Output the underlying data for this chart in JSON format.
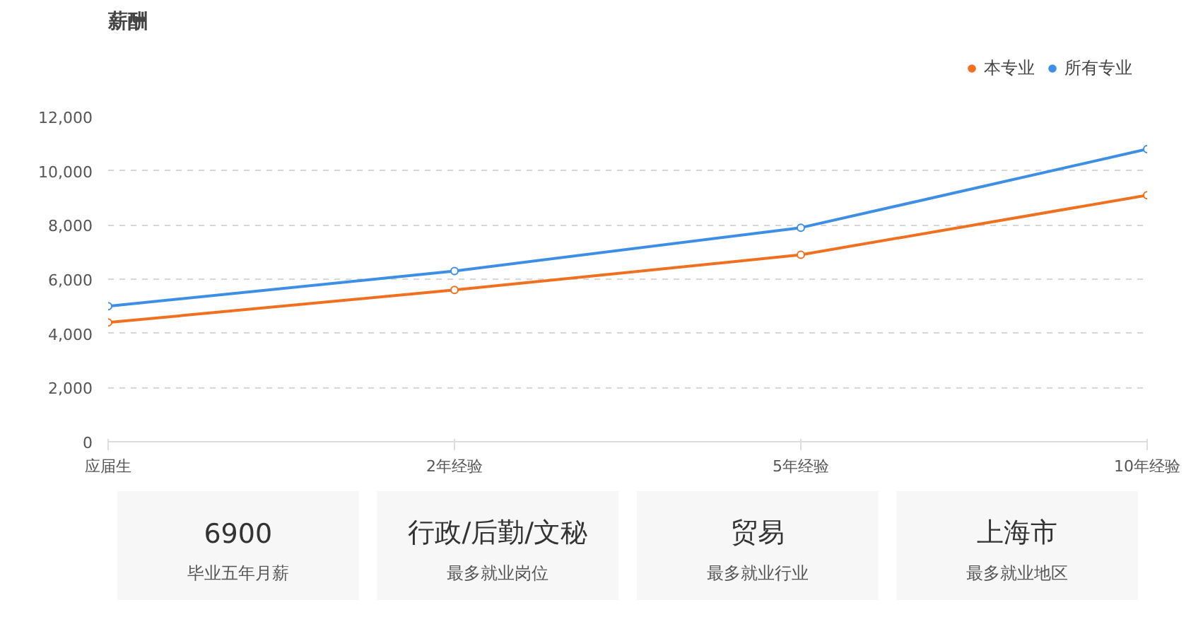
{
  "chart_data": [
    {
      "type": "line",
      "title": "薪酬",
      "categories": [
        "应届生",
        "2年经验",
        "5年经验",
        "10年经验"
      ],
      "series": [
        {
          "name": "本专业",
          "color": "#f07020",
          "values": [
            4400,
            5600,
            6900,
            9100
          ]
        },
        {
          "name": "所有专业",
          "color": "#3d8fe6",
          "values": [
            5000,
            6300,
            7900,
            10800
          ]
        }
      ],
      "ylim": [
        0,
        12000
      ],
      "yticks": [
        0,
        {
          "value": 2000,
          "label": "2,000"
        },
        {
          "value": 4000,
          "label": "4,000"
        },
        {
          "value": 6000,
          "label": "6,000"
        },
        {
          "value": 8000,
          "label": "8,000"
        },
        {
          "value": 10000,
          "label": "10,000"
        },
        {
          "value": 12000,
          "label": "12,000"
        }
      ],
      "grid": "y",
      "legend": "top right",
      "marker": "circle",
      "line_style": "solid"
    },
    {
      "type": "other",
      "annotations": [
        "6900",
        "毕业五年月薪",
        "行政/后勤/文秘",
        "最多就业岗位",
        "贸易",
        "最多就业行业",
        "上海市",
        "最多就业地区"
      ]
    }
  ]
}
